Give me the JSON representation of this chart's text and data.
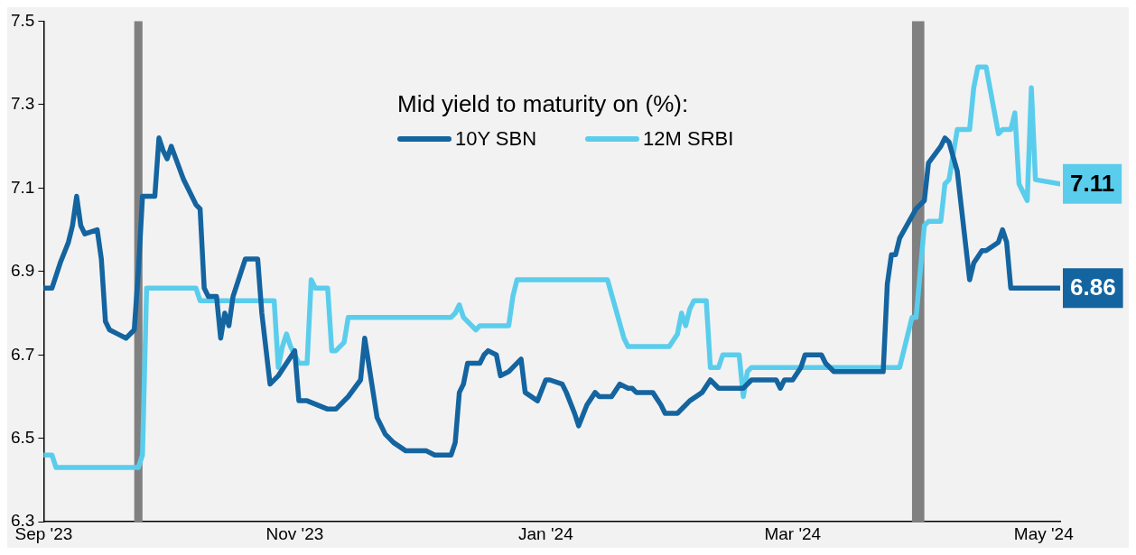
{
  "chart_data": {
    "type": "line",
    "legend_title": "Mid yield to maturity on (%):",
    "legend": "top",
    "grid": false,
    "marker": "none",
    "xlim": [
      "2023-09-01",
      "2024-05-05"
    ],
    "xticks": [
      {
        "value": "2023-09-01",
        "label": "Sep '23"
      },
      {
        "value": "2023-11-01",
        "label": "Nov '23"
      },
      {
        "value": "2024-01-01",
        "label": "Jan '24"
      },
      {
        "value": "2024-03-01",
        "label": "Mar '24"
      },
      {
        "value": "2024-05-01",
        "label": "May '24"
      }
    ],
    "ylim": [
      6.3,
      7.5
    ],
    "yticks": [
      6.3,
      6.5,
      6.7,
      6.9,
      7.1,
      7.3,
      7.5
    ],
    "bands": [
      {
        "axis": "x",
        "from": "2023-09-23",
        "to": "2023-09-25",
        "color": "#808080"
      },
      {
        "axis": "x",
        "from": "2024-03-30",
        "to": "2024-04-02",
        "color": "#808080"
      }
    ],
    "annotations": [
      {
        "text": "6.86",
        "x": "2024-05-05",
        "y": 6.86
      },
      {
        "text": "7.11",
        "x": "2024-05-05",
        "y": 7.11
      }
    ],
    "series": [
      {
        "name": "10Y SBN",
        "color": "#1464a0",
        "x": [
          "2023-09-01",
          "2023-09-03",
          "2023-09-05",
          "2023-09-07",
          "2023-09-08",
          "2023-09-09",
          "2023-09-10",
          "2023-09-11",
          "2023-09-14",
          "2023-09-15",
          "2023-09-16",
          "2023-09-17",
          "2023-09-19",
          "2023-09-21",
          "2023-09-23",
          "2023-09-24",
          "2023-09-25",
          "2023-09-28",
          "2023-09-29",
          "2023-09-30",
          "2023-10-01",
          "2023-10-02",
          "2023-10-05",
          "2023-10-06",
          "2023-10-08",
          "2023-10-09",
          "2023-10-10",
          "2023-10-11",
          "2023-10-13",
          "2023-10-14",
          "2023-10-15",
          "2023-10-16",
          "2023-10-17",
          "2023-10-20",
          "2023-10-23",
          "2023-10-24",
          "2023-10-26",
          "2023-10-28",
          "2023-11-01",
          "2023-11-02",
          "2023-11-04",
          "2023-11-09",
          "2023-11-11",
          "2023-11-14",
          "2023-11-17",
          "2023-11-18",
          "2023-11-21",
          "2023-11-23",
          "2023-11-25",
          "2023-11-28",
          "2023-12-03",
          "2023-12-05",
          "2023-12-09",
          "2023-12-10",
          "2023-12-11",
          "2023-12-12",
          "2023-12-13",
          "2023-12-16",
          "2023-12-17",
          "2023-12-18",
          "2023-12-20",
          "2023-12-21",
          "2023-12-23",
          "2023-12-24",
          "2023-12-26",
          "2023-12-27",
          "2023-12-30",
          "2024-01-01",
          "2024-01-02",
          "2024-01-05",
          "2024-01-06",
          "2024-01-08",
          "2024-01-09",
          "2024-01-11",
          "2024-01-13",
          "2024-01-14",
          "2024-01-17",
          "2024-01-19",
          "2024-01-21",
          "2024-01-22",
          "2024-01-23",
          "2024-01-27",
          "2024-01-29",
          "2024-01-30",
          "2024-01-31",
          "2024-02-02",
          "2024-02-04",
          "2024-02-05",
          "2024-02-08",
          "2024-02-10",
          "2024-02-12",
          "2024-02-14",
          "2024-02-18",
          "2024-02-20",
          "2024-02-25",
          "2024-02-26",
          "2024-02-27",
          "2024-02-28",
          "2024-03-01",
          "2024-03-03",
          "2024-03-04",
          "2024-03-05",
          "2024-03-08",
          "2024-03-09",
          "2024-03-11",
          "2024-03-23",
          "2024-03-24",
          "2024-03-25",
          "2024-03-26",
          "2024-03-27",
          "2024-03-31",
          "2024-04-01",
          "2024-04-02",
          "2024-04-03",
          "2024-04-06",
          "2024-04-07",
          "2024-04-08",
          "2024-04-10",
          "2024-04-13",
          "2024-04-14",
          "2024-04-16",
          "2024-04-17",
          "2024-04-20",
          "2024-04-21",
          "2024-04-22",
          "2024-04-23",
          "2024-05-05"
        ],
        "values": [
          6.86,
          6.86,
          6.92,
          6.97,
          7.01,
          7.08,
          7.01,
          6.99,
          7.0,
          6.93,
          6.78,
          6.76,
          6.75,
          6.74,
          6.76,
          6.9,
          7.08,
          7.08,
          7.22,
          7.19,
          7.17,
          7.2,
          7.12,
          7.1,
          7.06,
          7.05,
          6.86,
          6.84,
          6.84,
          6.74,
          6.8,
          6.77,
          6.84,
          6.93,
          6.93,
          6.8,
          6.63,
          6.65,
          6.71,
          6.59,
          6.59,
          6.57,
          6.57,
          6.6,
          6.64,
          6.74,
          6.55,
          6.51,
          6.49,
          6.47,
          6.47,
          6.46,
          6.46,
          6.49,
          6.61,
          6.63,
          6.68,
          6.68,
          6.7,
          6.71,
          6.7,
          6.65,
          6.66,
          6.67,
          6.69,
          6.61,
          6.59,
          6.64,
          6.64,
          6.63,
          6.61,
          6.56,
          6.53,
          6.58,
          6.61,
          6.6,
          6.6,
          6.63,
          6.62,
          6.62,
          6.61,
          6.61,
          6.58,
          6.56,
          6.56,
          6.56,
          6.58,
          6.59,
          6.61,
          6.64,
          6.62,
          6.62,
          6.62,
          6.64,
          6.64,
          6.64,
          6.62,
          6.64,
          6.64,
          6.67,
          6.7,
          6.7,
          6.7,
          6.68,
          6.66,
          6.66,
          6.87,
          6.94,
          6.94,
          6.98,
          7.05,
          7.06,
          7.07,
          7.16,
          7.2,
          7.22,
          7.21,
          7.14,
          6.88,
          6.92,
          6.95,
          6.95,
          6.97,
          7.0,
          6.97,
          6.86,
          6.86
        ]
      },
      {
        "name": "12M SRBI",
        "color": "#5bcdec",
        "x": [
          "2023-09-01",
          "2023-09-03",
          "2023-09-04",
          "2023-09-24",
          "2023-09-25",
          "2023-09-26",
          "2023-10-08",
          "2023-10-09",
          "2023-10-27",
          "2023-10-28",
          "2023-10-29",
          "2023-10-30",
          "2023-10-31",
          "2023-11-02",
          "2023-11-04",
          "2023-11-05",
          "2023-11-06",
          "2023-11-09",
          "2023-11-10",
          "2023-11-11",
          "2023-11-13",
          "2023-11-14",
          "2023-12-09",
          "2023-12-10",
          "2023-12-11",
          "2023-12-12",
          "2023-12-15",
          "2023-12-16",
          "2023-12-23",
          "2023-12-24",
          "2023-12-25",
          "2024-01-16",
          "2024-01-20",
          "2024-01-21",
          "2024-01-31",
          "2024-02-02",
          "2024-02-03",
          "2024-02-04",
          "2024-02-05",
          "2024-02-06",
          "2024-02-09",
          "2024-02-10",
          "2024-02-12",
          "2024-02-13",
          "2024-02-17",
          "2024-02-18",
          "2024-02-19",
          "2024-02-20",
          "2024-03-27",
          "2024-03-30",
          "2024-03-31",
          "2024-04-02",
          "2024-04-03",
          "2024-04-06",
          "2024-04-07",
          "2024-04-08",
          "2024-04-10",
          "2024-04-13",
          "2024-04-14",
          "2024-04-15",
          "2024-04-17",
          "2024-04-20",
          "2024-04-21",
          "2024-04-23",
          "2024-04-24",
          "2024-04-25",
          "2024-04-27",
          "2024-04-28",
          "2024-04-29",
          "2024-05-05"
        ],
        "values": [
          6.46,
          6.46,
          6.43,
          6.43,
          6.46,
          6.86,
          6.86,
          6.83,
          6.83,
          6.67,
          6.72,
          6.75,
          6.72,
          6.68,
          6.68,
          6.88,
          6.86,
          6.86,
          6.71,
          6.71,
          6.73,
          6.79,
          6.79,
          6.8,
          6.82,
          6.79,
          6.76,
          6.77,
          6.77,
          6.84,
          6.88,
          6.88,
          6.74,
          6.72,
          6.72,
          6.75,
          6.8,
          6.77,
          6.81,
          6.83,
          6.83,
          6.67,
          6.67,
          6.7,
          6.7,
          6.6,
          6.66,
          6.67,
          6.67,
          6.79,
          6.79,
          7.01,
          7.02,
          7.02,
          7.11,
          7.12,
          7.24,
          7.24,
          7.34,
          7.39,
          7.39,
          7.23,
          7.24,
          7.24,
          7.28,
          7.11,
          7.07,
          7.34,
          7.12,
          7.11
        ]
      }
    ]
  }
}
